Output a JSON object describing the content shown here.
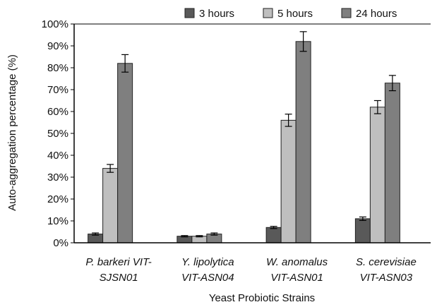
{
  "chart_data": {
    "type": "bar",
    "title": "",
    "xlabel": "Yeast Probiotic Strains",
    "ylabel": "Auto-aggregation percentage (%)",
    "ylim": [
      0,
      100
    ],
    "yticks": [
      "0%",
      "10%",
      "20%",
      "30%",
      "40%",
      "50%",
      "60%",
      "70%",
      "80%",
      "90%",
      "100%"
    ],
    "categories": [
      [
        "P. barkeri VIT-",
        "SJSN01"
      ],
      [
        "Y. lipolytica",
        "VIT-ASN04"
      ],
      [
        "W. anomalus",
        "VIT-ASN01"
      ],
      [
        "S. cerevisiae",
        "VIT-ASN03"
      ]
    ],
    "series": [
      {
        "name": "3 hours",
        "color": "#595959",
        "values": [
          4,
          3,
          7,
          11
        ],
        "errors": [
          0.5,
          0.3,
          0.5,
          0.8
        ]
      },
      {
        "name": "5 hours",
        "color": "#bfbfbf",
        "values": [
          34,
          3,
          56,
          62
        ],
        "errors": [
          1.8,
          0.3,
          2.8,
          3
        ]
      },
      {
        "name": "24 hours",
        "color": "#7f7f7f",
        "values": [
          82,
          4,
          92,
          73
        ],
        "errors": [
          4,
          0.5,
          4.5,
          3.5
        ]
      }
    ],
    "legend_position": "top-right",
    "grid": false
  }
}
